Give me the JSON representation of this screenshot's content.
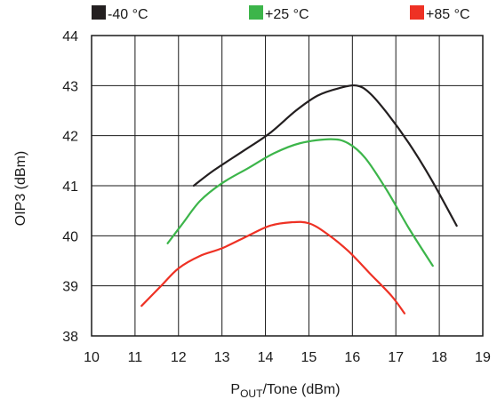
{
  "chart_data": {
    "type": "line",
    "title": "",
    "xlabel": "P",
    "xlabel_sub": "OUT",
    "xlabel_suffix": "/Tone (dBm)",
    "ylabel": "OIP3 (dBm)",
    "xlim": [
      10,
      19
    ],
    "ylim": [
      38,
      44
    ],
    "xticks": [
      "10",
      "11",
      "12",
      "13",
      "14",
      "15",
      "16",
      "17",
      "18",
      "19"
    ],
    "yticks": [
      "38",
      "39",
      "40",
      "41",
      "42",
      "43",
      "44"
    ],
    "grid": true,
    "legend_position": "top",
    "series": [
      {
        "name": "-40 °C",
        "color": "#231f20",
        "points": [
          [
            12.35,
            41.0
          ],
          [
            12.8,
            41.3
          ],
          [
            13.5,
            41.7
          ],
          [
            14.1,
            42.05
          ],
          [
            14.7,
            42.5
          ],
          [
            15.2,
            42.8
          ],
          [
            15.7,
            42.95
          ],
          [
            16.1,
            43.0
          ],
          [
            16.4,
            42.85
          ],
          [
            16.8,
            42.45
          ],
          [
            17.3,
            41.85
          ],
          [
            17.8,
            41.15
          ],
          [
            18.4,
            40.2
          ]
        ]
      },
      {
        "name": "+25 °C",
        "color": "#3cb54a",
        "points": [
          [
            11.75,
            39.85
          ],
          [
            12.1,
            40.25
          ],
          [
            12.5,
            40.7
          ],
          [
            13.0,
            41.05
          ],
          [
            13.6,
            41.35
          ],
          [
            14.2,
            41.65
          ],
          [
            14.8,
            41.85
          ],
          [
            15.5,
            41.93
          ],
          [
            15.9,
            41.85
          ],
          [
            16.3,
            41.55
          ],
          [
            16.8,
            40.9
          ],
          [
            17.3,
            40.15
          ],
          [
            17.85,
            39.4
          ]
        ]
      },
      {
        "name": "+85 °C",
        "color": "#ee3124",
        "points": [
          [
            11.15,
            38.6
          ],
          [
            11.6,
            39.0
          ],
          [
            12.0,
            39.35
          ],
          [
            12.5,
            39.6
          ],
          [
            13.0,
            39.75
          ],
          [
            13.6,
            40.0
          ],
          [
            14.1,
            40.2
          ],
          [
            14.6,
            40.27
          ],
          [
            15.0,
            40.25
          ],
          [
            15.4,
            40.05
          ],
          [
            15.9,
            39.7
          ],
          [
            16.4,
            39.25
          ],
          [
            16.9,
            38.8
          ],
          [
            17.2,
            38.45
          ]
        ]
      }
    ]
  }
}
